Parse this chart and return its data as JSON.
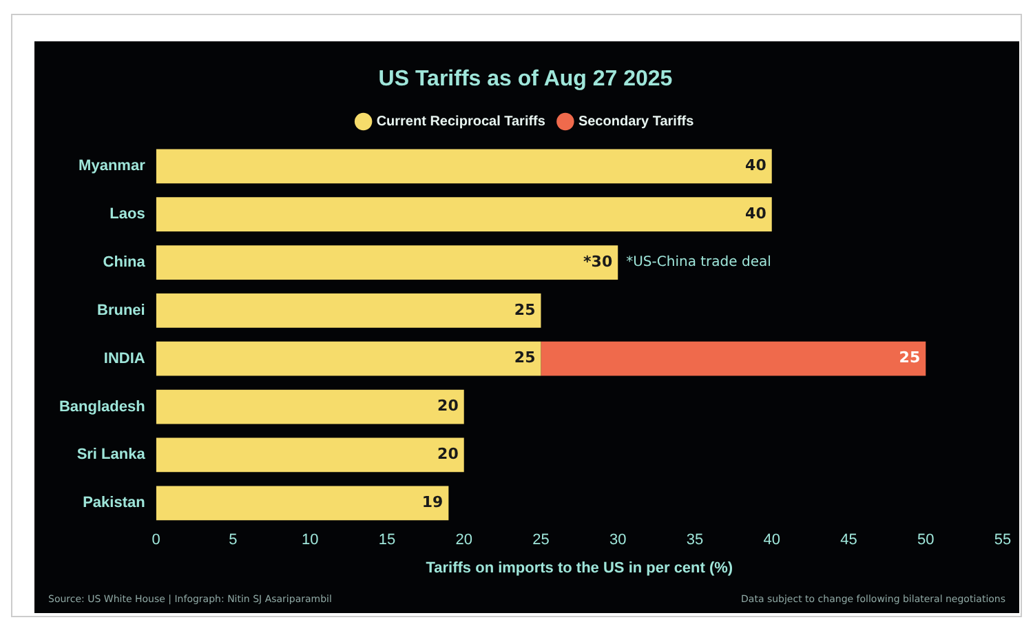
{
  "chart_data": {
    "type": "bar",
    "orientation": "horizontal",
    "stacked": true,
    "title": "US Tariffs as of Aug 27 2025",
    "xlabel": "Tariffs on imports to the US in per cent (%)",
    "categories": [
      "Myanmar",
      "Laos",
      "China",
      "Brunei",
      "INDIA",
      "Bangladesh",
      "Sri Lanka",
      "Pakistan"
    ],
    "series": [
      {
        "name": "Current Reciprocal Tariffs",
        "color": "#f6dc6b",
        "values": [
          40,
          40,
          30,
          25,
          25,
          20,
          20,
          19
        ],
        "value_labels": [
          "40",
          "40",
          "*30",
          "25",
          "25",
          "20",
          "20",
          "19"
        ]
      },
      {
        "name": "Secondary Tariffs",
        "color": "#ef6a4c",
        "values": [
          null,
          null,
          null,
          null,
          25,
          null,
          null,
          null
        ],
        "value_labels": [
          null,
          null,
          null,
          null,
          "25",
          null,
          null,
          null
        ]
      }
    ],
    "xlim": [
      0,
      55
    ],
    "xticks": [
      0,
      5,
      10,
      15,
      20,
      25,
      30,
      35,
      40,
      45,
      50,
      55
    ],
    "grid": false,
    "legend": "top",
    "annotations": [
      {
        "text": "*US-China trade deal",
        "x": 30,
        "y": "China"
      },
      "Source: US White House | Infograph: Nitin SJ Asariparambil",
      "Data subject to change following bilateral negotiations"
    ]
  }
}
